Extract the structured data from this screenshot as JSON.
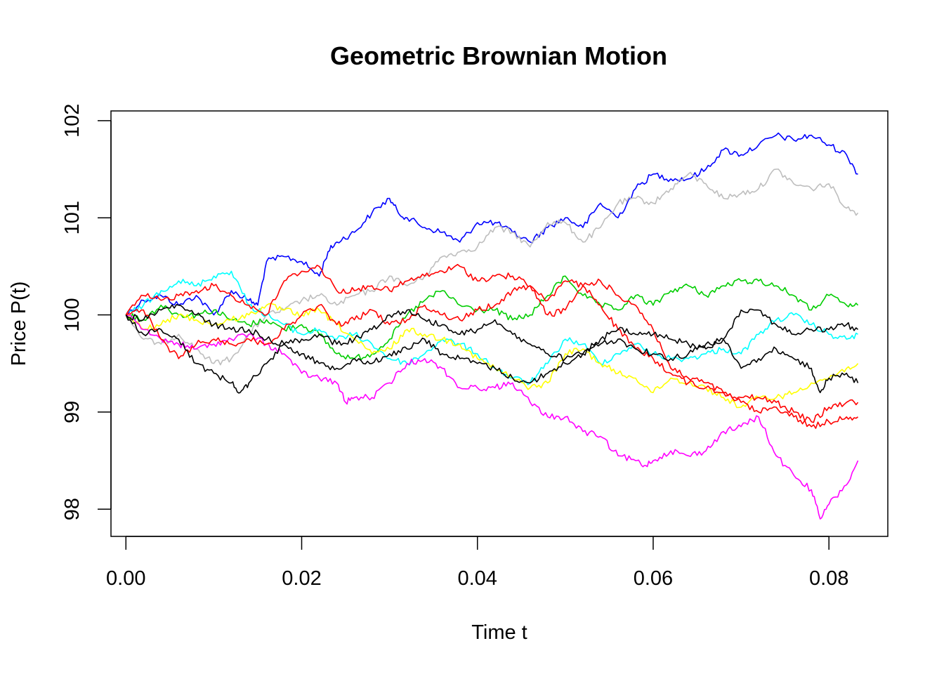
{
  "chart_data": {
    "type": "line",
    "title": "Geometric Brownian Motion",
    "xlabel": "Time t",
    "ylabel": "Price P(t)",
    "xlim": [
      -0.0017,
      0.0867
    ],
    "ylim": [
      97.72,
      102.1
    ],
    "xticks": [
      0.0,
      0.02,
      0.04,
      0.06,
      0.08
    ],
    "xtick_labels": [
      "0.00",
      "0.02",
      "0.04",
      "0.06",
      "0.08"
    ],
    "yticks": [
      98,
      99,
      100,
      101,
      102
    ],
    "ytick_labels": [
      "98",
      "99",
      "100",
      "101",
      "102"
    ],
    "grid": false,
    "legend": "none",
    "series": [
      {
        "color": "#0000FF",
        "x": [
          0,
          0.002,
          0.004,
          0.006,
          0.008,
          0.01,
          0.012,
          0.014,
          0.015,
          0.016,
          0.018,
          0.02,
          0.022,
          0.023,
          0.024,
          0.026,
          0.028,
          0.03,
          0.031,
          0.032,
          0.034,
          0.036,
          0.038,
          0.04,
          0.042,
          0.044,
          0.046,
          0.048,
          0.05,
          0.052,
          0.054,
          0.056,
          0.058,
          0.06,
          0.062,
          0.064,
          0.066,
          0.068,
          0.07,
          0.072,
          0.074,
          0.076,
          0.078,
          0.08,
          0.082,
          0.0833
        ],
        "y": [
          100.0,
          100.15,
          100.2,
          100.1,
          100.2,
          100.0,
          100.25,
          100.15,
          100.1,
          100.55,
          100.6,
          100.55,
          100.4,
          100.65,
          100.75,
          100.85,
          101.05,
          101.2,
          101.05,
          101.0,
          100.9,
          100.85,
          100.75,
          100.95,
          100.95,
          100.85,
          100.75,
          100.9,
          101.0,
          100.9,
          101.15,
          101.0,
          101.3,
          101.45,
          101.4,
          101.4,
          101.5,
          101.7,
          101.65,
          101.75,
          101.85,
          101.8,
          101.85,
          101.75,
          101.65,
          101.45
        ]
      },
      {
        "color": "#BEBEBE",
        "x": [
          0,
          0.002,
          0.004,
          0.006,
          0.008,
          0.01,
          0.012,
          0.014,
          0.016,
          0.018,
          0.02,
          0.022,
          0.024,
          0.026,
          0.028,
          0.03,
          0.032,
          0.034,
          0.036,
          0.038,
          0.04,
          0.042,
          0.044,
          0.046,
          0.048,
          0.05,
          0.052,
          0.054,
          0.056,
          0.058,
          0.06,
          0.062,
          0.064,
          0.066,
          0.068,
          0.07,
          0.072,
          0.074,
          0.076,
          0.078,
          0.08,
          0.082,
          0.0833
        ],
        "y": [
          100.0,
          99.75,
          99.7,
          99.8,
          99.65,
          99.5,
          99.55,
          99.8,
          100.0,
          100.05,
          100.15,
          100.2,
          100.1,
          100.2,
          100.25,
          100.4,
          100.3,
          100.4,
          100.6,
          100.65,
          100.7,
          100.9,
          100.85,
          100.7,
          100.95,
          100.95,
          100.75,
          100.9,
          101.15,
          101.2,
          101.15,
          101.3,
          101.45,
          101.35,
          101.2,
          101.25,
          101.3,
          101.5,
          101.35,
          101.3,
          101.35,
          101.1,
          101.05
        ]
      },
      {
        "color": "#00CD00",
        "x": [
          0,
          0.002,
          0.004,
          0.006,
          0.008,
          0.01,
          0.012,
          0.014,
          0.016,
          0.018,
          0.02,
          0.022,
          0.024,
          0.026,
          0.028,
          0.03,
          0.032,
          0.034,
          0.036,
          0.038,
          0.04,
          0.042,
          0.044,
          0.046,
          0.048,
          0.05,
          0.052,
          0.054,
          0.056,
          0.058,
          0.06,
          0.062,
          0.064,
          0.066,
          0.068,
          0.07,
          0.072,
          0.074,
          0.076,
          0.078,
          0.08,
          0.082,
          0.0833
        ],
        "y": [
          100.0,
          99.95,
          100.1,
          100.0,
          100.0,
          100.05,
          99.95,
          99.9,
          99.95,
          99.85,
          99.9,
          99.8,
          99.6,
          99.55,
          99.6,
          99.75,
          100.0,
          100.15,
          100.25,
          100.1,
          100.05,
          100.05,
          99.95,
          100.0,
          100.2,
          100.4,
          100.2,
          100.1,
          100.05,
          100.2,
          100.1,
          100.25,
          100.3,
          100.2,
          100.3,
          100.35,
          100.35,
          100.3,
          100.2,
          100.05,
          100.2,
          100.1,
          100.1
        ]
      },
      {
        "color": "#00FFFF",
        "x": [
          0,
          0.002,
          0.004,
          0.006,
          0.008,
          0.01,
          0.012,
          0.014,
          0.016,
          0.018,
          0.02,
          0.022,
          0.024,
          0.026,
          0.028,
          0.03,
          0.032,
          0.034,
          0.036,
          0.038,
          0.04,
          0.042,
          0.044,
          0.046,
          0.048,
          0.05,
          0.052,
          0.054,
          0.056,
          0.058,
          0.06,
          0.062,
          0.064,
          0.066,
          0.068,
          0.07,
          0.072,
          0.074,
          0.076,
          0.078,
          0.08,
          0.082,
          0.0833
        ],
        "y": [
          100.0,
          100.1,
          100.25,
          100.35,
          100.3,
          100.4,
          100.45,
          100.1,
          100.0,
          99.9,
          99.8,
          99.85,
          99.75,
          99.8,
          99.7,
          99.55,
          99.5,
          99.6,
          99.75,
          99.7,
          99.6,
          99.45,
          99.35,
          99.3,
          99.5,
          99.75,
          99.7,
          99.5,
          99.6,
          99.7,
          99.6,
          99.55,
          99.55,
          99.6,
          99.65,
          99.6,
          99.8,
          99.95,
          100.0,
          99.9,
          99.8,
          99.75,
          99.8
        ]
      },
      {
        "color": "#FFFF00",
        "x": [
          0,
          0.002,
          0.004,
          0.006,
          0.008,
          0.01,
          0.012,
          0.014,
          0.016,
          0.018,
          0.02,
          0.022,
          0.024,
          0.026,
          0.028,
          0.03,
          0.032,
          0.034,
          0.036,
          0.038,
          0.04,
          0.042,
          0.044,
          0.046,
          0.048,
          0.05,
          0.052,
          0.054,
          0.056,
          0.058,
          0.06,
          0.062,
          0.064,
          0.066,
          0.068,
          0.07,
          0.072,
          0.074,
          0.076,
          0.078,
          0.08,
          0.082,
          0.0833
        ],
        "y": [
          100.0,
          99.85,
          99.9,
          100.0,
          99.95,
          99.9,
          99.95,
          100.0,
          100.1,
          100.05,
          100.0,
          100.05,
          99.9,
          99.75,
          99.6,
          99.65,
          99.85,
          99.8,
          99.75,
          99.7,
          99.55,
          99.45,
          99.35,
          99.25,
          99.3,
          99.6,
          99.65,
          99.5,
          99.4,
          99.35,
          99.2,
          99.35,
          99.3,
          99.25,
          99.15,
          99.05,
          99.15,
          99.15,
          99.2,
          99.3,
          99.35,
          99.45,
          99.5
        ]
      },
      {
        "color": "#FF00FF",
        "x": [
          0,
          0.002,
          0.004,
          0.006,
          0.008,
          0.01,
          0.012,
          0.014,
          0.016,
          0.018,
          0.02,
          0.022,
          0.024,
          0.025,
          0.026,
          0.028,
          0.03,
          0.032,
          0.034,
          0.036,
          0.038,
          0.04,
          0.042,
          0.044,
          0.046,
          0.048,
          0.05,
          0.052,
          0.054,
          0.056,
          0.058,
          0.059,
          0.06,
          0.062,
          0.064,
          0.066,
          0.068,
          0.07,
          0.072,
          0.074,
          0.076,
          0.078,
          0.079,
          0.08,
          0.082,
          0.0833
        ],
        "y": [
          100.0,
          99.85,
          99.75,
          99.7,
          99.65,
          99.7,
          99.75,
          99.8,
          99.7,
          99.6,
          99.4,
          99.35,
          99.3,
          99.1,
          99.15,
          99.15,
          99.3,
          99.5,
          99.55,
          99.45,
          99.25,
          99.25,
          99.25,
          99.3,
          99.1,
          98.95,
          98.95,
          98.8,
          98.75,
          98.55,
          98.5,
          98.45,
          98.5,
          98.6,
          98.55,
          98.6,
          98.8,
          98.85,
          98.95,
          98.55,
          98.35,
          98.2,
          97.9,
          98.05,
          98.25,
          98.5
        ]
      },
      {
        "color": "#FF0000",
        "x": [
          0,
          0.002,
          0.004,
          0.006,
          0.008,
          0.01,
          0.012,
          0.014,
          0.016,
          0.018,
          0.02,
          0.022,
          0.024,
          0.026,
          0.028,
          0.03,
          0.032,
          0.034,
          0.036,
          0.038,
          0.04,
          0.042,
          0.044,
          0.046,
          0.048,
          0.05,
          0.052,
          0.054,
          0.056,
          0.058,
          0.06,
          0.062,
          0.064,
          0.066,
          0.068,
          0.07,
          0.072,
          0.074,
          0.076,
          0.078,
          0.08,
          0.082,
          0.0833
        ],
        "y": [
          100.0,
          100.2,
          100.15,
          100.2,
          100.25,
          100.3,
          100.2,
          100.1,
          100.0,
          100.35,
          100.45,
          100.5,
          100.25,
          100.25,
          100.3,
          100.25,
          100.35,
          100.4,
          100.45,
          100.5,
          100.35,
          100.4,
          100.4,
          100.3,
          100.0,
          100.05,
          100.3,
          100.35,
          100.2,
          100.1,
          99.85,
          99.45,
          99.35,
          99.3,
          99.2,
          99.1,
          99.0,
          99.05,
          98.95,
          98.85,
          98.9,
          98.95,
          98.95
        ]
      },
      {
        "color": "#FF0000",
        "x": [
          0,
          0.002,
          0.004,
          0.006,
          0.008,
          0.01,
          0.012,
          0.014,
          0.016,
          0.018,
          0.02,
          0.022,
          0.024,
          0.026,
          0.028,
          0.03,
          0.032,
          0.034,
          0.036,
          0.038,
          0.04,
          0.042,
          0.044,
          0.046,
          0.048,
          0.05,
          0.052,
          0.054,
          0.056,
          0.058,
          0.06,
          0.062,
          0.064,
          0.066,
          0.068,
          0.07,
          0.072,
          0.074,
          0.076,
          0.078,
          0.08,
          0.082,
          0.0833
        ],
        "y": [
          100.0,
          100.05,
          99.75,
          99.55,
          99.7,
          99.75,
          99.7,
          99.75,
          99.7,
          99.85,
          100.0,
          100.1,
          99.9,
          99.95,
          100.05,
          99.9,
          99.95,
          100.1,
          100.0,
          99.95,
          100.05,
          100.1,
          100.25,
          100.3,
          100.15,
          100.35,
          100.3,
          100.1,
          99.85,
          99.65,
          99.55,
          99.4,
          99.3,
          99.25,
          99.2,
          99.15,
          99.15,
          99.1,
          99.0,
          98.9,
          99.05,
          99.1,
          99.1
        ]
      },
      {
        "color": "#000000",
        "x": [
          0,
          0.002,
          0.004,
          0.006,
          0.008,
          0.01,
          0.012,
          0.013,
          0.014,
          0.016,
          0.018,
          0.02,
          0.022,
          0.024,
          0.026,
          0.028,
          0.03,
          0.032,
          0.034,
          0.036,
          0.038,
          0.04,
          0.042,
          0.044,
          0.046,
          0.048,
          0.05,
          0.052,
          0.054,
          0.056,
          0.058,
          0.06,
          0.062,
          0.064,
          0.066,
          0.068,
          0.07,
          0.072,
          0.074,
          0.076,
          0.078,
          0.079,
          0.08,
          0.082,
          0.0833
        ],
        "y": [
          100.0,
          99.8,
          99.85,
          99.75,
          99.5,
          99.4,
          99.3,
          99.2,
          99.3,
          99.5,
          99.7,
          99.6,
          99.5,
          99.45,
          99.55,
          99.5,
          99.6,
          99.65,
          99.75,
          99.6,
          99.55,
          99.5,
          99.45,
          99.35,
          99.3,
          99.4,
          99.5,
          99.6,
          99.7,
          99.75,
          99.65,
          99.6,
          99.55,
          99.6,
          99.7,
          99.75,
          99.45,
          99.55,
          99.65,
          99.55,
          99.45,
          99.2,
          99.35,
          99.4,
          99.3
        ]
      },
      {
        "color": "#000000",
        "x": [
          0,
          0.002,
          0.004,
          0.006,
          0.008,
          0.01,
          0.012,
          0.014,
          0.016,
          0.018,
          0.02,
          0.022,
          0.024,
          0.026,
          0.028,
          0.03,
          0.032,
          0.034,
          0.036,
          0.038,
          0.04,
          0.042,
          0.044,
          0.046,
          0.048,
          0.05,
          0.052,
          0.054,
          0.056,
          0.058,
          0.06,
          0.062,
          0.064,
          0.066,
          0.068,
          0.07,
          0.072,
          0.074,
          0.076,
          0.078,
          0.08,
          0.082,
          0.0833
        ],
        "y": [
          100.0,
          99.95,
          100.05,
          100.1,
          100.0,
          99.9,
          99.85,
          99.85,
          99.75,
          99.7,
          99.75,
          99.8,
          99.7,
          99.75,
          99.85,
          100.0,
          100.05,
          99.95,
          99.9,
          99.8,
          99.85,
          99.95,
          99.8,
          99.7,
          99.6,
          99.55,
          99.6,
          99.75,
          99.85,
          99.8,
          99.8,
          99.75,
          99.7,
          99.65,
          99.75,
          100.05,
          100.05,
          99.9,
          99.8,
          99.85,
          99.85,
          99.9,
          99.85
        ]
      }
    ]
  }
}
